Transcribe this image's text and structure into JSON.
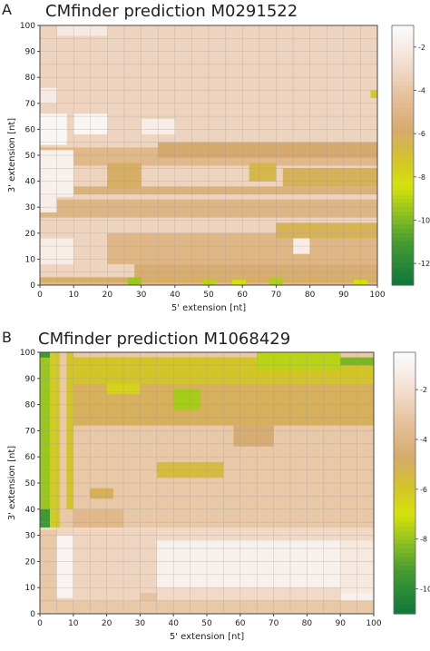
{
  "chart_data": [
    {
      "type": "heatmap",
      "panel_label": "A",
      "title": "CMfinder prediction M0291522",
      "xlabel": "5' extension [nt]",
      "ylabel": "3' extension [nt]",
      "xlim": [
        0,
        100
      ],
      "ylim": [
        0,
        100
      ],
      "xticks": [
        "0",
        "10",
        "20",
        "30",
        "40",
        "50",
        "60",
        "70",
        "80",
        "90",
        "100"
      ],
      "yticks": [
        "0",
        "10",
        "20",
        "30",
        "40",
        "50",
        "60",
        "70",
        "80",
        "90",
        "100"
      ],
      "grid": true,
      "colorbar": {
        "range": [
          -13,
          -1
        ],
        "ticks": [
          "-2",
          "-4",
          "-6",
          "-8",
          "-10",
          "-12"
        ],
        "tick_values": [
          -2,
          -4,
          -6,
          -8,
          -10,
          -12
        ]
      },
      "base_value": -3.2,
      "regions": [
        {
          "x": [
            0,
            100
          ],
          "y": [
            35,
            38
          ],
          "value": -5.3
        },
        {
          "x": [
            0,
            100
          ],
          "y": [
            26,
            33
          ],
          "value": -5.0
        },
        {
          "x": [
            0,
            100
          ],
          "y": [
            46,
            53
          ],
          "value": -4.8
        },
        {
          "x": [
            20,
            100
          ],
          "y": [
            8,
            20
          ],
          "value": -4.9
        },
        {
          "x": [
            28,
            100
          ],
          "y": [
            0,
            8
          ],
          "value": -5.6
        },
        {
          "x": [
            35,
            100
          ],
          "y": [
            49,
            55
          ],
          "value": -5.8
        },
        {
          "x": [
            70,
            100
          ],
          "y": [
            18,
            24
          ],
          "value": -6.3
        },
        {
          "x": [
            62,
            70
          ],
          "y": [
            40,
            47
          ],
          "value": -6.5
        },
        {
          "x": [
            72,
            100
          ],
          "y": [
            38,
            45
          ],
          "value": -6.2
        },
        {
          "x": [
            20,
            30
          ],
          "y": [
            37,
            47
          ],
          "value": -6.0
        },
        {
          "x": [
            0,
            8
          ],
          "y": [
            54,
            66
          ],
          "value": -1.2
        },
        {
          "x": [
            0,
            10
          ],
          "y": [
            34,
            52
          ],
          "value": -1.6
        },
        {
          "x": [
            0,
            10
          ],
          "y": [
            8,
            18
          ],
          "value": -1.8
        },
        {
          "x": [
            10,
            20
          ],
          "y": [
            58,
            66
          ],
          "value": -1.3
        },
        {
          "x": [
            0,
            5
          ],
          "y": [
            28,
            34
          ],
          "value": -1.8
        },
        {
          "x": [
            5,
            20
          ],
          "y": [
            96,
            100
          ],
          "value": -2.0
        },
        {
          "x": [
            0,
            5
          ],
          "y": [
            70,
            76
          ],
          "value": -1.9
        },
        {
          "x": [
            30,
            40
          ],
          "y": [
            58,
            64
          ],
          "value": -1.8
        },
        {
          "x": [
            75,
            80
          ],
          "y": [
            12,
            18
          ],
          "value": -1.8
        },
        {
          "x": [
            0,
            100
          ],
          "y": [
            0,
            1
          ],
          "value": -4.7
        },
        {
          "x": [
            0,
            100
          ],
          "y": [
            1,
            3
          ],
          "value": -6.0
        },
        {
          "x": [
            26,
            30
          ],
          "y": [
            0,
            3
          ],
          "value": -9.5
        },
        {
          "x": [
            48,
            52
          ],
          "y": [
            0,
            2
          ],
          "value": -9.0
        },
        {
          "x": [
            68,
            72
          ],
          "y": [
            0,
            3
          ],
          "value": -9.2
        },
        {
          "x": [
            57,
            61
          ],
          "y": [
            0,
            2
          ],
          "value": -8.5
        },
        {
          "x": [
            93,
            97
          ],
          "y": [
            0,
            2
          ],
          "value": -8.5
        },
        {
          "x": [
            98,
            100
          ],
          "y": [
            72,
            75
          ],
          "value": -7.5
        }
      ]
    },
    {
      "type": "heatmap",
      "panel_label": "B",
      "title": "CMfinder prediction M1068429",
      "xlabel": "5' extension [nt]",
      "ylabel": "3' extension [nt]",
      "xlim": [
        0,
        100
      ],
      "ylim": [
        0,
        100
      ],
      "xticks": [
        "0",
        "10",
        "20",
        "30",
        "40",
        "50",
        "60",
        "70",
        "80",
        "90",
        "100"
      ],
      "yticks": [
        "0",
        "10",
        "20",
        "30",
        "40",
        "50",
        "60",
        "70",
        "80",
        "90",
        "100"
      ],
      "grid": true,
      "colorbar": {
        "range": [
          -11,
          -0.5
        ],
        "ticks": [
          "-2",
          "-4",
          "-6",
          "-8",
          "-10"
        ],
        "tick_values": [
          -2,
          -4,
          -6,
          -8,
          -10
        ]
      },
      "base_value": -3.0,
      "regions": [
        {
          "x": [
            0,
            100
          ],
          "y": [
            32,
            33
          ],
          "value": -2.2
        },
        {
          "x": [
            5,
            100
          ],
          "y": [
            5,
            32
          ],
          "value": -2.2
        },
        {
          "x": [
            5,
            35
          ],
          "y": [
            5,
            32
          ],
          "value": -2.4
        },
        {
          "x": [
            35,
            90
          ],
          "y": [
            10,
            28
          ],
          "value": -1.0
        },
        {
          "x": [
            5,
            10
          ],
          "y": [
            6,
            30
          ],
          "value": -0.8
        },
        {
          "x": [
            90,
            100
          ],
          "y": [
            6,
            28
          ],
          "value": -1.4
        },
        {
          "x": [
            0,
            100
          ],
          "y": [
            0,
            5
          ],
          "value": -3.0
        },
        {
          "x": [
            0,
            3
          ],
          "y": [
            33,
            100
          ],
          "value": -9.5
        },
        {
          "x": [
            0,
            5
          ],
          "y": [
            40,
            98
          ],
          "value": -8.0
        },
        {
          "x": [
            3,
            6
          ],
          "y": [
            33,
            100
          ],
          "value": -6.2
        },
        {
          "x": [
            8,
            10
          ],
          "y": [
            40,
            100
          ],
          "value": -6.0
        },
        {
          "x": [
            10,
            100
          ],
          "y": [
            72,
            98
          ],
          "value": -5.0
        },
        {
          "x": [
            10,
            100
          ],
          "y": [
            88,
            98
          ],
          "value": -6.0
        },
        {
          "x": [
            65,
            90
          ],
          "y": [
            93,
            100
          ],
          "value": -7.5
        },
        {
          "x": [
            90,
            100
          ],
          "y": [
            95,
            98
          ],
          "value": -8.5
        },
        {
          "x": [
            40,
            48
          ],
          "y": [
            78,
            86
          ],
          "value": -7.8
        },
        {
          "x": [
            20,
            30
          ],
          "y": [
            84,
            88
          ],
          "value": -6.5
        },
        {
          "x": [
            35,
            55
          ],
          "y": [
            52,
            58
          ],
          "value": -5.5
        },
        {
          "x": [
            15,
            22
          ],
          "y": [
            44,
            48
          ],
          "value": -5.0
        },
        {
          "x": [
            58,
            70
          ],
          "y": [
            64,
            72
          ],
          "value": -4.6
        },
        {
          "x": [
            10,
            25
          ],
          "y": [
            33,
            40
          ],
          "value": -3.8
        },
        {
          "x": [
            90,
            100
          ],
          "y": [
            5,
            8
          ],
          "value": -1.0
        },
        {
          "x": [
            30,
            35
          ],
          "y": [
            5,
            8
          ],
          "value": -3.2
        }
      ]
    }
  ]
}
